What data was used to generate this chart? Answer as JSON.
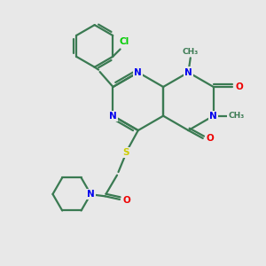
{
  "bg": "#e8e8e8",
  "bond_color": "#3a7a52",
  "bond_lw": 1.6,
  "atom_colors": {
    "N": "#0000ee",
    "O": "#ee0000",
    "S": "#cccc00",
    "Cl": "#00cc00",
    "C": "#3a7a52"
  },
  "fs": 7.5,
  "fs_small": 6.5
}
